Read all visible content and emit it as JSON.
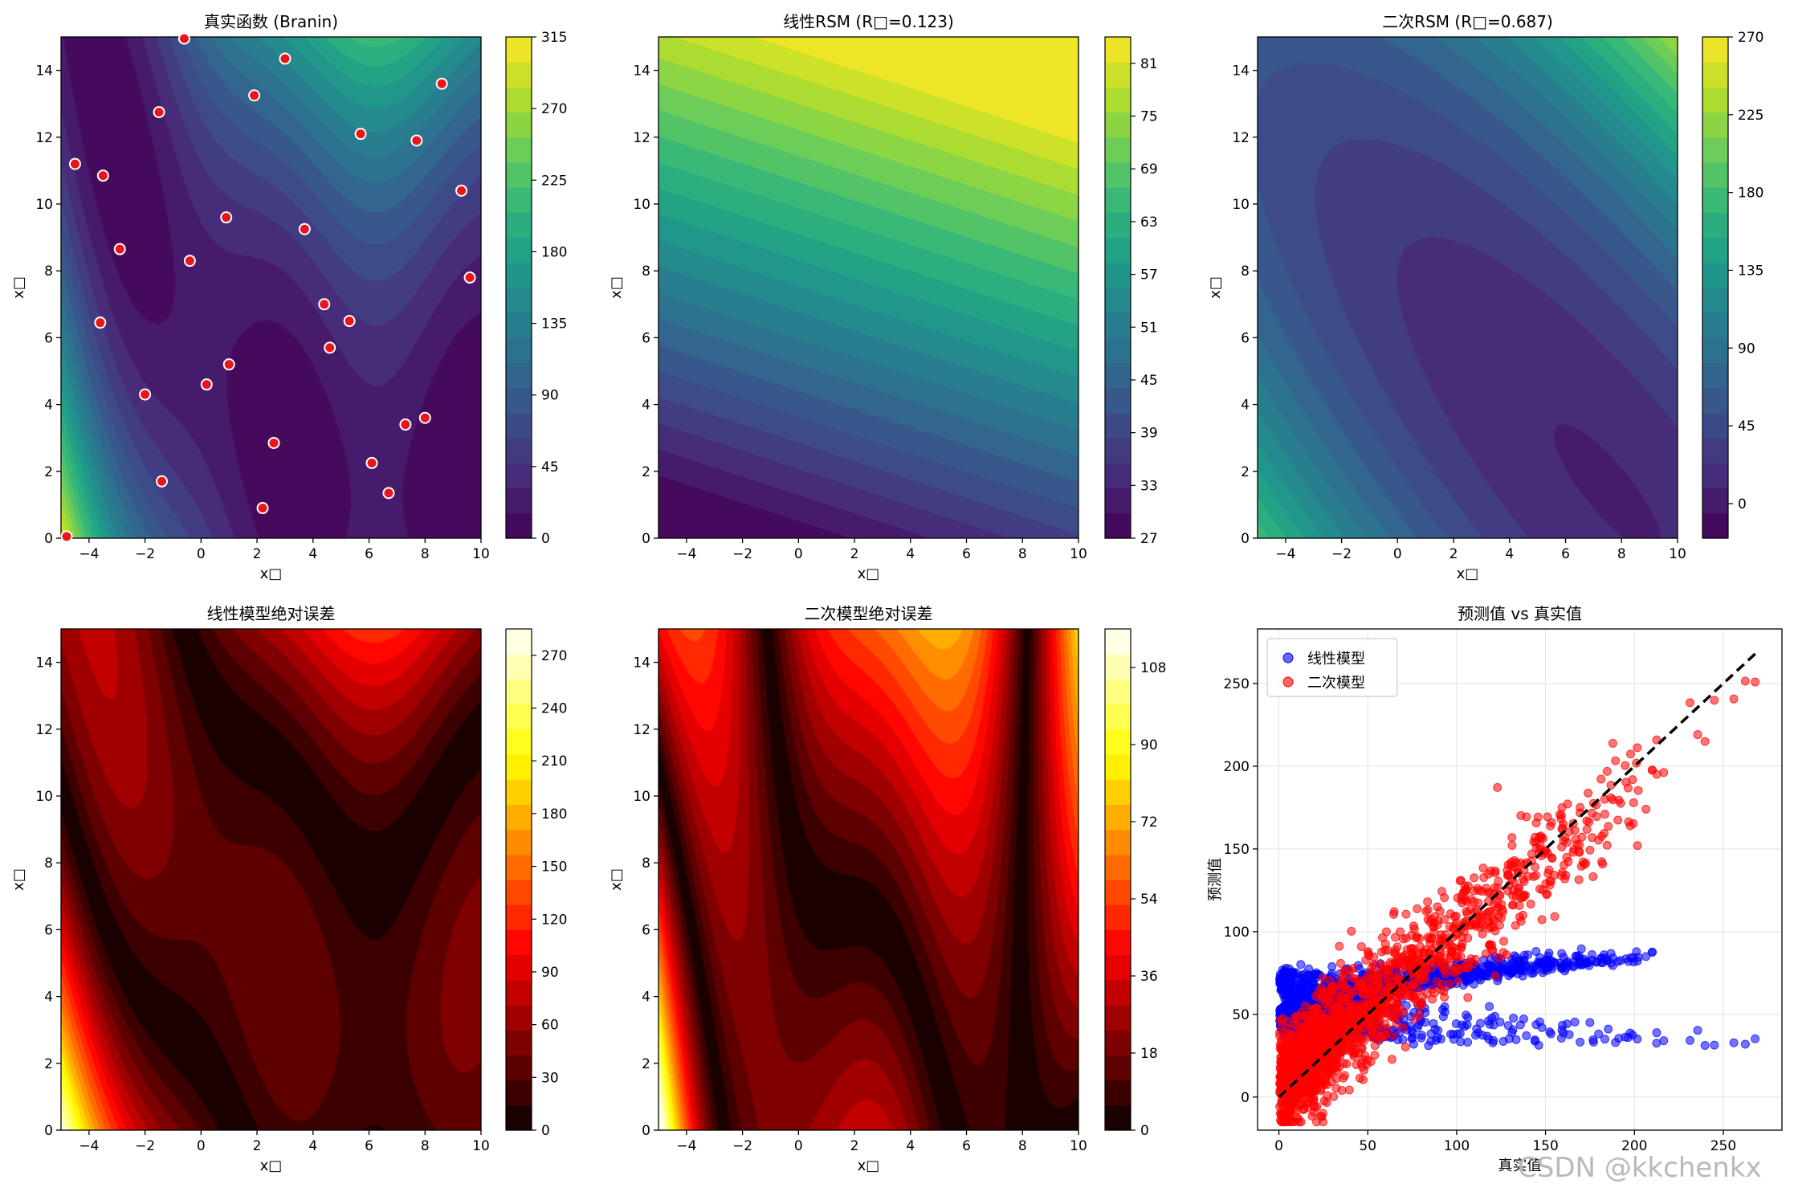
{
  "figure": {
    "watermark": "CSDN @kkchenkx"
  },
  "chart_data": [
    {
      "type": "contour",
      "title": "真实函数 (Branin)",
      "xlabel": "x□",
      "ylabel": "x□",
      "xlim": [
        -5,
        10
      ],
      "ylim": [
        0,
        15
      ],
      "xticks": [
        -4,
        -2,
        0,
        2,
        4,
        6,
        8,
        10
      ],
      "yticks": [
        0,
        2,
        4,
        6,
        8,
        10,
        12,
        14
      ],
      "colormap": "viridis",
      "colorbar": {
        "min": 0,
        "max": 315,
        "ticks": [
          0,
          45,
          90,
          135,
          180,
          225,
          270,
          315
        ]
      },
      "function": "branin",
      "sample_points": [
        [
          -4.8,
          0.05
        ],
        [
          -4.5,
          11.2
        ],
        [
          -3.5,
          10.85
        ],
        [
          -3.6,
          6.45
        ],
        [
          -2.9,
          8.65
        ],
        [
          -1.5,
          12.75
        ],
        [
          -2.0,
          4.3
        ],
        [
          -1.4,
          1.7
        ],
        [
          -0.6,
          14.95
        ],
        [
          -0.4,
          8.3
        ],
        [
          0.2,
          4.6
        ],
        [
          0.9,
          9.6
        ],
        [
          1.0,
          5.2
        ],
        [
          1.9,
          13.25
        ],
        [
          2.2,
          0.9
        ],
        [
          2.6,
          2.85
        ],
        [
          3.0,
          14.35
        ],
        [
          3.7,
          9.25
        ],
        [
          4.4,
          7.0
        ],
        [
          4.6,
          5.7
        ],
        [
          5.3,
          6.5
        ],
        [
          5.7,
          12.1
        ],
        [
          6.1,
          2.25
        ],
        [
          6.7,
          1.35
        ],
        [
          7.3,
          3.4
        ],
        [
          7.7,
          11.9
        ],
        [
          8.0,
          3.6
        ],
        [
          8.6,
          13.6
        ],
        [
          9.3,
          10.4
        ],
        [
          9.6,
          7.8
        ]
      ]
    },
    {
      "type": "contour",
      "title": "线性RSM (R□=0.123)",
      "xlabel": "x□",
      "ylabel": "x□",
      "xlim": [
        -5,
        10
      ],
      "ylim": [
        0,
        15
      ],
      "xticks": [
        -4,
        -2,
        0,
        2,
        4,
        6,
        8,
        10
      ],
      "yticks": [
        0,
        2,
        4,
        6,
        8,
        10,
        12,
        14
      ],
      "colormap": "viridis",
      "colorbar": {
        "min": 27,
        "max": 84,
        "ticks": [
          27,
          33,
          39,
          45,
          51,
          57,
          63,
          69,
          75,
          81
        ]
      },
      "function": "linear_rsm"
    },
    {
      "type": "contour",
      "title": "二次RSM (R□=0.687)",
      "xlabel": "x□",
      "ylabel": "x□",
      "xlim": [
        -5,
        10
      ],
      "ylim": [
        0,
        15
      ],
      "xticks": [
        -4,
        -2,
        0,
        2,
        4,
        6,
        8,
        10
      ],
      "yticks": [
        0,
        2,
        4,
        6,
        8,
        10,
        12,
        14
      ],
      "colormap": "viridis",
      "colorbar": {
        "min": -20,
        "max": 270,
        "ticks": [
          0,
          45,
          90,
          135,
          180,
          225,
          270
        ]
      },
      "function": "quadratic_rsm"
    },
    {
      "type": "contour",
      "title": "线性模型绝对误差",
      "xlabel": "x□",
      "ylabel": "x□",
      "xlim": [
        -5,
        10
      ],
      "ylim": [
        0,
        15
      ],
      "xticks": [
        -4,
        -2,
        0,
        2,
        4,
        6,
        8,
        10
      ],
      "yticks": [
        0,
        2,
        4,
        6,
        8,
        10,
        12,
        14
      ],
      "colormap": "hot",
      "colorbar": {
        "min": 0,
        "max": 285,
        "ticks": [
          0,
          30,
          60,
          90,
          120,
          150,
          180,
          210,
          240,
          270
        ]
      },
      "function": "linear_abs_error"
    },
    {
      "type": "contour",
      "title": "二次模型绝对误差",
      "xlabel": "x□",
      "ylabel": "x□",
      "xlim": [
        -5,
        10
      ],
      "ylim": [
        0,
        15
      ],
      "xticks": [
        -4,
        -2,
        0,
        2,
        4,
        6,
        8,
        10
      ],
      "yticks": [
        0,
        2,
        4,
        6,
        8,
        10,
        12,
        14
      ],
      "colormap": "hot",
      "colorbar": {
        "min": 0,
        "max": 117,
        "ticks": [
          0,
          18,
          36,
          54,
          72,
          90,
          108
        ]
      },
      "function": "quadratic_abs_error"
    },
    {
      "type": "scatter",
      "title": "预测值 vs 真实值",
      "xlabel": "真实值",
      "ylabel": "预测值",
      "xlim": [
        -12,
        283
      ],
      "ylim": [
        -20,
        283
      ],
      "xticks": [
        0,
        50,
        100,
        150,
        200,
        250
      ],
      "yticks": [
        0,
        50,
        100,
        150,
        200,
        250
      ],
      "grid": true,
      "legend": {
        "placement": "top-left",
        "entries": [
          "线性模型",
          "二次模型"
        ]
      },
      "series": [
        {
          "name": "线性模型",
          "color": "#0000ff",
          "description": "blue points, predictions mostly 35-80"
        },
        {
          "name": "二次模型",
          "color": "#ff0000",
          "description": "red points, spread along diagonal"
        }
      ],
      "reference_line": {
        "from": [
          0,
          0
        ],
        "to": [
          270,
          270
        ],
        "style": "dashed",
        "color": "#000000"
      }
    }
  ]
}
